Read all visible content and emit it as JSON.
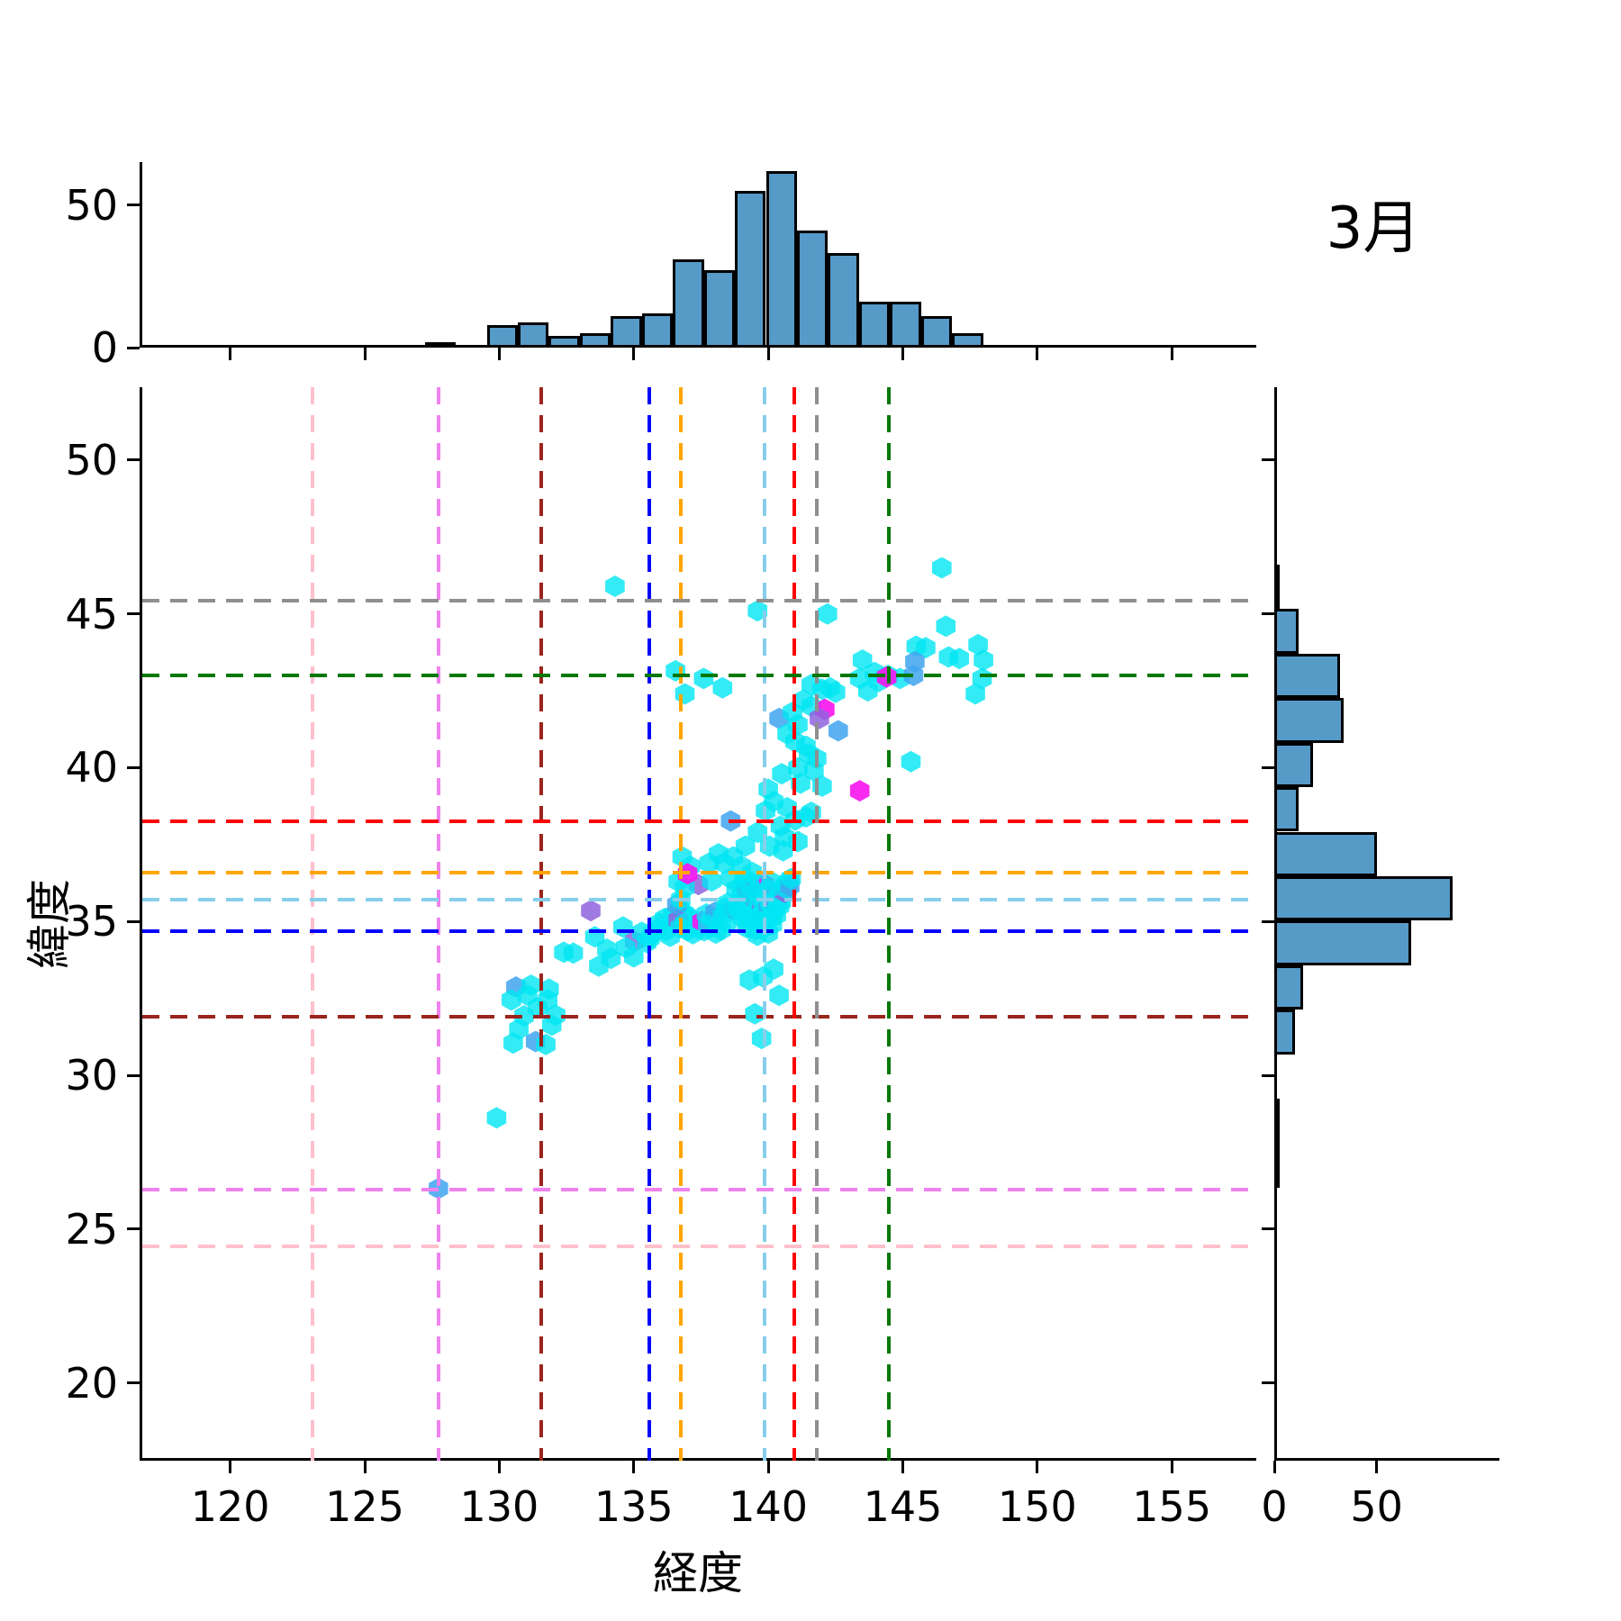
{
  "title": "3月",
  "chart_data": {
    "type": "scatter",
    "title": "3月",
    "xlabel": "経度",
    "ylabel": "緯度",
    "xlim": [
      116.63,
      158.14
    ],
    "ylim": [
      17.47,
      52.37
    ],
    "x_ticks": [
      120,
      125,
      130,
      135,
      140,
      145,
      150,
      155
    ],
    "y_ticks": [
      20,
      25,
      30,
      35,
      40,
      45,
      50
    ],
    "grid": false,
    "legend": "none",
    "marginal_axis_ticks": [
      0,
      50
    ],
    "bar_color": "#569AC8",
    "bar_edge_color": "#000000",
    "point_colors": [
      "#00E6F2",
      "#3FA4EF",
      "#8F63DE",
      "#FA14EE"
    ],
    "point_color_names": [
      "cyan",
      "blue",
      "purple",
      "magenta"
    ],
    "top_histogram": {
      "orientation": "vertical",
      "bin_start": 127.23,
      "bin_width": 1.1531,
      "counts": [
        2,
        0,
        8,
        9,
        4,
        5,
        11,
        12,
        31,
        27,
        55,
        62,
        41,
        33,
        16,
        16,
        11,
        5
      ],
      "axis_max": 65
    },
    "right_histogram": {
      "orientation": "horizontal",
      "bin_start": 26.34,
      "bin_height": 1.4476,
      "counts": [
        1,
        1,
        0,
        10,
        14,
        67,
        87,
        50,
        12,
        19,
        34,
        32,
        12,
        1
      ],
      "axis_max": 110
    },
    "reference_lines": [
      {
        "color": "pink",
        "hex": "#FFC0CB",
        "lon": 122.94,
        "lat": 24.45
      },
      {
        "color": "violet",
        "hex": "#EE82EE",
        "lon": 127.64,
        "lat": 26.27
      },
      {
        "color": "darkred",
        "hex": "#9A251D",
        "lon": 131.46,
        "lat": 31.92
      },
      {
        "color": "blue",
        "hex": "#0000FF",
        "lon": 135.46,
        "lat": 34.69
      },
      {
        "color": "orange",
        "hex": "#FFA500",
        "lon": 136.66,
        "lat": 36.58
      },
      {
        "color": "skyblue",
        "hex": "#87CEEB",
        "lon": 139.76,
        "lat": 35.72
      },
      {
        "color": "red",
        "hex": "#FF0000",
        "lon": 140.88,
        "lat": 38.27
      },
      {
        "color": "gray",
        "hex": "#8F8F8F",
        "lon": 141.69,
        "lat": 45.42
      },
      {
        "color": "green",
        "hex": "#067806",
        "lon": 144.38,
        "lat": 42.99
      }
    ],
    "points": [
      [
        127.64,
        26.32,
        1
      ],
      [
        129.8,
        28.62,
        0
      ],
      [
        130.52,
        32.87,
        1
      ],
      [
        131.08,
        32.93,
        0
      ],
      [
        131.75,
        32.8,
        0
      ],
      [
        130.35,
        32.45,
        0
      ],
      [
        131.7,
        32.45,
        0
      ],
      [
        131.32,
        32.2,
        0
      ],
      [
        130.82,
        31.93,
        0
      ],
      [
        132.0,
        31.95,
        0
      ],
      [
        130.63,
        31.5,
        0
      ],
      [
        131.85,
        31.63,
        0
      ],
      [
        130.42,
        31.05,
        0
      ],
      [
        131.25,
        31.1,
        1
      ],
      [
        131.63,
        31.0,
        0
      ],
      [
        130.95,
        32.6,
        0
      ],
      [
        132.3,
        34.0,
        0
      ],
      [
        132.65,
        33.97,
        0
      ],
      [
        133.3,
        35.35,
        2
      ],
      [
        133.45,
        34.5,
        0
      ],
      [
        133.9,
        34.1,
        0
      ],
      [
        134.05,
        33.8,
        0
      ],
      [
        133.6,
        33.55,
        0
      ],
      [
        134.5,
        34.82,
        0
      ],
      [
        134.93,
        34.36,
        2
      ],
      [
        134.6,
        34.15,
        0
      ],
      [
        134.9,
        33.85,
        0
      ],
      [
        135.2,
        34.65,
        0
      ],
      [
        135.38,
        34.32,
        0
      ],
      [
        135.5,
        34.45,
        0
      ],
      [
        135.6,
        34.6,
        0
      ],
      [
        135.75,
        34.75,
        0
      ],
      [
        135.85,
        34.95,
        0
      ],
      [
        136.1,
        34.7,
        0
      ],
      [
        136.25,
        34.52,
        0
      ],
      [
        136.05,
        35.1,
        0
      ],
      [
        136.35,
        35.2,
        0
      ],
      [
        136.6,
        35.4,
        0
      ],
      [
        136.75,
        35.28,
        0
      ],
      [
        136.92,
        35.18,
        0
      ],
      [
        137.05,
        35.05,
        0
      ],
      [
        136.55,
        35.05,
        2
      ],
      [
        136.8,
        34.95,
        0
      ],
      [
        137.2,
        34.85,
        0
      ],
      [
        137.35,
        34.75,
        0
      ],
      [
        137.52,
        34.7,
        0
      ],
      [
        136.62,
        34.8,
        0
      ],
      [
        136.9,
        34.7,
        0
      ],
      [
        137.1,
        34.6,
        0
      ],
      [
        137.44,
        35.0,
        3
      ],
      [
        137.8,
        35.1,
        0
      ],
      [
        137.6,
        35.25,
        0
      ],
      [
        137.92,
        35.3,
        1
      ],
      [
        138.2,
        35.18,
        0
      ],
      [
        138.35,
        34.95,
        0
      ],
      [
        138.15,
        34.72,
        0
      ],
      [
        137.65,
        34.9,
        0
      ],
      [
        136.5,
        35.55,
        1
      ],
      [
        136.65,
        35.72,
        0
      ],
      [
        137.3,
        36.2,
        2
      ],
      [
        137.8,
        36.32,
        0
      ],
      [
        136.8,
        36.1,
        0
      ],
      [
        138.4,
        35.6,
        0
      ],
      [
        138.6,
        35.4,
        1
      ],
      [
        138.3,
        35.45,
        0
      ],
      [
        137.95,
        34.62,
        0
      ],
      [
        136.55,
        36.3,
        0
      ],
      [
        139.0,
        35.4,
        0
      ],
      [
        139.1,
        35.6,
        0
      ],
      [
        139.2,
        35.32,
        0
      ],
      [
        139.3,
        35.5,
        0
      ],
      [
        139.4,
        35.7,
        3
      ],
      [
        139.45,
        35.35,
        0
      ],
      [
        139.5,
        35.55,
        0
      ],
      [
        139.55,
        35.2,
        0
      ],
      [
        139.6,
        35.75,
        0
      ],
      [
        139.65,
        35.45,
        2
      ],
      [
        139.72,
        35.62,
        0
      ],
      [
        139.7,
        35.3,
        0
      ],
      [
        139.75,
        35.9,
        0
      ],
      [
        139.8,
        35.5,
        0
      ],
      [
        139.85,
        35.72,
        0
      ],
      [
        139.9,
        35.42,
        1
      ],
      [
        139.95,
        35.6,
        0
      ],
      [
        140.0,
        35.8,
        0
      ],
      [
        140.05,
        35.5,
        0
      ],
      [
        140.1,
        35.65,
        3
      ],
      [
        140.1,
        35.3,
        0
      ],
      [
        140.15,
        35.9,
        0
      ],
      [
        140.2,
        35.55,
        0
      ],
      [
        140.25,
        35.75,
        0
      ],
      [
        140.32,
        35.5,
        0
      ],
      [
        140.3,
        36.0,
        0
      ],
      [
        140.38,
        35.65,
        0
      ],
      [
        140.42,
        35.85,
        0
      ],
      [
        140.45,
        36.1,
        0
      ],
      [
        140.5,
        35.95,
        2
      ],
      [
        140.55,
        36.2,
        0
      ],
      [
        140.6,
        36.05,
        0
      ],
      [
        140.65,
        36.3,
        0
      ],
      [
        140.7,
        36.15,
        1
      ],
      [
        140.75,
        36.4,
        0
      ],
      [
        139.35,
        36.1,
        0
      ],
      [
        139.5,
        36.2,
        0
      ],
      [
        139.6,
        36.0,
        0
      ],
      [
        139.75,
        36.2,
        3
      ],
      [
        139.9,
        36.05,
        0
      ],
      [
        140.0,
        36.3,
        0
      ],
      [
        139.2,
        36.3,
        0
      ],
      [
        139.05,
        36.15,
        0
      ],
      [
        138.9,
        35.9,
        0
      ],
      [
        139.1,
        35.95,
        2
      ],
      [
        139.3,
        35.85,
        0
      ],
      [
        139.45,
        35.95,
        0
      ],
      [
        138.85,
        35.3,
        0
      ],
      [
        138.95,
        35.1,
        0
      ],
      [
        139.15,
        35.15,
        0
      ],
      [
        139.4,
        35.1,
        0
      ],
      [
        139.6,
        34.95,
        0
      ],
      [
        139.8,
        35.05,
        0
      ],
      [
        140.0,
        35.15,
        0
      ],
      [
        140.2,
        35.2,
        0
      ],
      [
        138.75,
        35.55,
        0
      ],
      [
        138.7,
        36.05,
        0
      ],
      [
        139.1,
        34.8,
        0
      ],
      [
        139.4,
        34.72,
        0
      ],
      [
        139.75,
        34.8,
        0
      ],
      [
        140.05,
        34.9,
        0
      ],
      [
        139.9,
        34.62,
        0
      ],
      [
        139.5,
        34.55,
        0
      ],
      [
        140.1,
        33.45,
        0
      ],
      [
        139.7,
        33.2,
        0
      ],
      [
        139.2,
        33.1,
        0
      ],
      [
        140.3,
        32.6,
        0
      ],
      [
        139.4,
        32.0,
        0
      ],
      [
        139.65,
        31.2,
        0
      ],
      [
        138.05,
        37.2,
        0
      ],
      [
        138.6,
        37.1,
        0
      ],
      [
        139.05,
        37.45,
        0
      ],
      [
        138.25,
        36.9,
        0
      ],
      [
        137.7,
        36.9,
        0
      ],
      [
        138.9,
        36.8,
        0
      ],
      [
        139.3,
        36.6,
        0
      ],
      [
        137.0,
        36.8,
        0
      ],
      [
        136.7,
        37.1,
        0
      ],
      [
        136.9,
        36.55,
        3
      ],
      [
        138.5,
        36.4,
        0
      ],
      [
        139.0,
        36.35,
        0
      ],
      [
        141.0,
        40.0,
        0
      ],
      [
        141.6,
        39.9,
        0
      ],
      [
        140.4,
        39.8,
        0
      ],
      [
        141.1,
        39.5,
        0
      ],
      [
        141.9,
        39.4,
        0
      ],
      [
        143.3,
        39.25,
        3
      ],
      [
        139.9,
        39.3,
        0
      ],
      [
        140.1,
        38.9,
        0
      ],
      [
        140.6,
        38.7,
        0
      ],
      [
        141.5,
        38.55,
        0
      ],
      [
        140.9,
        38.3,
        0
      ],
      [
        141.3,
        38.4,
        0
      ],
      [
        139.8,
        38.6,
        0
      ],
      [
        140.35,
        38.1,
        0
      ],
      [
        138.5,
        38.27,
        1
      ],
      [
        139.5,
        37.9,
        0
      ],
      [
        140.5,
        37.75,
        0
      ],
      [
        141.0,
        37.6,
        0
      ],
      [
        139.95,
        37.45,
        0
      ],
      [
        140.45,
        37.3,
        0
      ],
      [
        141.7,
        40.3,
        0
      ],
      [
        140.9,
        40.85,
        0
      ],
      [
        146.35,
        46.5,
        0
      ],
      [
        142.1,
        45.0,
        0
      ],
      [
        134.2,
        45.9,
        0
      ],
      [
        139.5,
        45.1,
        0
      ],
      [
        146.5,
        44.6,
        0
      ],
      [
        145.4,
        43.95,
        0
      ],
      [
        145.75,
        43.9,
        0
      ],
      [
        143.4,
        43.5,
        0
      ],
      [
        146.6,
        43.6,
        0
      ],
      [
        147.0,
        43.55,
        0
      ],
      [
        147.7,
        44.0,
        0
      ],
      [
        147.9,
        43.5,
        0
      ],
      [
        145.35,
        43.45,
        1
      ],
      [
        143.85,
        43.1,
        0
      ],
      [
        144.0,
        42.8,
        0
      ],
      [
        144.35,
        43.0,
        0
      ],
      [
        144.8,
        42.9,
        0
      ],
      [
        145.3,
        43.0,
        1
      ],
      [
        144.3,
        42.95,
        3
      ],
      [
        143.3,
        42.9,
        0
      ],
      [
        143.6,
        42.5,
        0
      ],
      [
        147.6,
        42.4,
        0
      ],
      [
        147.85,
        42.9,
        0
      ],
      [
        141.5,
        42.7,
        0
      ],
      [
        141.9,
        42.55,
        0
      ],
      [
        142.2,
        42.6,
        0
      ],
      [
        142.4,
        42.45,
        0
      ],
      [
        141.2,
        42.2,
        0
      ],
      [
        141.5,
        42.0,
        0
      ],
      [
        142.0,
        41.9,
        3
      ],
      [
        141.8,
        41.6,
        2
      ],
      [
        140.3,
        41.6,
        1
      ],
      [
        140.8,
        41.8,
        0
      ],
      [
        141.0,
        41.4,
        0
      ],
      [
        142.5,
        41.2,
        1
      ],
      [
        140.6,
        41.1,
        0
      ],
      [
        141.3,
        40.7,
        0
      ],
      [
        141.4,
        40.45,
        0
      ],
      [
        145.2,
        40.2,
        0
      ],
      [
        136.45,
        43.15,
        0
      ],
      [
        137.5,
        42.9,
        0
      ],
      [
        138.2,
        42.6,
        0
      ],
      [
        136.8,
        42.4,
        0
      ]
    ]
  }
}
